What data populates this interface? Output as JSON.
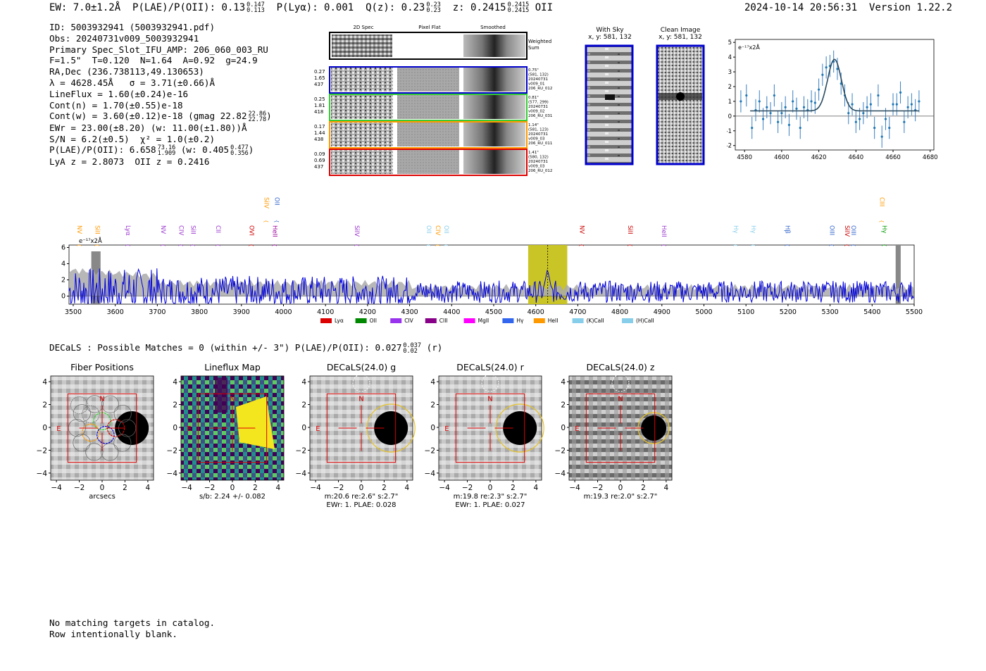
{
  "header": {
    "ew_label": "EW: 7.0±1.2Å",
    "ew_up": "",
    "ew_dn": "",
    "plae_label": "P(LAE)/P(OII): 0.13",
    "plae_up": "0.147",
    "plae_dn": "0.113",
    "plya": "P(Lyα): 0.001",
    "qz_label": "Q(z): 0.23",
    "qz_up": "0.23",
    "qz_dn": "0.23",
    "z_label": "z: 0.2415",
    "z_up": "0.2415",
    "z_dn": "0.2415",
    "z_line": "OII",
    "timestamp": "2024-10-14 20:56:31",
    "version": "Version 1.22.2"
  },
  "info": {
    "id": "ID: 5003932941 (5003932941.pdf)",
    "obs": "Obs: 20240731v009_5003932941",
    "primary": "Primary Spec_Slot_IFU_AMP: 206_060_003_RU",
    "params": "F=1.5\"  T=0.120  N=1.64  A=0.92  g=24.9",
    "radec": "RA,Dec (236.738113,49.130653)",
    "lambda": "λ = 4628.45Å   σ = 3.71(±0.66)Å",
    "lineflux": "LineFlux = 1.60(±0.24)e-16",
    "contn": "Cont(n) = 1.70(±0.55)e-18",
    "contw": "Cont(w) = 3.60(±0.12)e-18 (gmag 22.82",
    "contw_up": "22.86",
    "contw_dn": "22.78",
    "ewr": "EWr = 23.00(±8.20) (w: 11.00(±1.80))Å",
    "sn": "S/N = 6.2(±0.5)  χ² = 1.0(±0.2)",
    "plae": "P(LAE)/P(OII): 6.658",
    "plae_up": "73.16",
    "plae_dn": "1.909",
    "plae_w": "(w: 0.405",
    "plae_w_up": "0.477",
    "plae_w_dn": "0.356",
    "lya_z": "LyA z = 2.8073  OII z = 0.2416"
  },
  "cutouts": {
    "col_2d": "2D Spec",
    "col_flat": "Pixel Flat",
    "col_smooth": "Smoothed",
    "weighted": "Weighted\nSum",
    "rows": [
      {
        "color": "#0000cc",
        "left": "0.27\n1.65\n437",
        "right": "0.75\"\n(581, 132)\n20240731\nv009_01\n206_RU_012"
      },
      {
        "color": "#33cc33",
        "left": "0.25\n1.81\n418",
        "right": "0.81\"\n(577, 299)\n20240731\nv009_02\n206_RU_031"
      },
      {
        "color": "#ff9900",
        "left": "0.17\n1.44\n438",
        "right": "1.14\"\n(581, 123)\n20240731\nv009_03\n206_RU_011"
      },
      {
        "color": "#dd0000",
        "left": "0.09\n0.69\n437",
        "right": "1.41\"\n(580, 132)\n20240731\nv009_03\n206_RU_012"
      }
    ],
    "with_sky": "With Sky",
    "with_sky_xy": "x, y: 581, 132",
    "clean": "Clean Image",
    "clean_xy": "x, y: 581, 132"
  },
  "line_fit": {
    "unit": "e⁻¹⁷x2Å",
    "xticks": [
      "4580",
      "4600",
      "4620",
      "4640",
      "4660",
      "4680"
    ],
    "yticks": [
      "-2",
      "-1",
      "0",
      "1",
      "2",
      "3",
      "4",
      "5"
    ]
  },
  "chart_data": [
    {
      "type": "scatter",
      "title": "line fit",
      "xlim": [
        4575,
        4682
      ],
      "ylim": [
        -2.3,
        5.2
      ],
      "x": [
        4578,
        4581,
        4584,
        4586,
        4588,
        4590,
        4592,
        4594,
        4596,
        4598,
        4600,
        4602,
        4604,
        4606,
        4608,
        4610,
        4612,
        4614,
        4616,
        4618,
        4620,
        4622,
        4624,
        4626,
        4628,
        4630,
        4632,
        4634,
        4636,
        4638,
        4640,
        4642,
        4644,
        4646,
        4648,
        4650,
        4652,
        4654,
        4656,
        4658,
        4660,
        4662,
        4664,
        4666,
        4668,
        4670,
        4672,
        4674
      ],
      "y": [
        1.0,
        1.4,
        -0.8,
        0.4,
        1.0,
        -0.2,
        0.6,
        0.2,
        1.4,
        -0.4,
        0.2,
        0.6,
        -0.6,
        1.0,
        0.5,
        -0.8,
        0.6,
        0.4,
        1.0,
        0.9,
        1.8,
        2.8,
        3.3,
        3.4,
        3.7,
        3.2,
        2.2,
        1.4,
        0.2,
        0.8,
        -0.4,
        -0.2,
        0.2,
        0.6,
        0.8,
        -0.8,
        1.4,
        -1.4,
        -0.2,
        -0.8,
        0.8,
        0.8,
        1.6,
        -0.4,
        0.6,
        0.8,
        0.4,
        1.0
      ],
      "fit_continuum": 0.35,
      "fit_peak": 3.85,
      "fit_center": 4628.45
    },
    {
      "type": "line",
      "title": "full spectrum",
      "xlim": [
        3490,
        5500
      ],
      "ylim": [
        -1,
        6.3
      ],
      "xticks": [
        "3500",
        "3600",
        "3700",
        "3800",
        "3900",
        "4000",
        "4100",
        "4200",
        "4300",
        "4400",
        "4500",
        "4600",
        "4700",
        "4800",
        "4900",
        "5000",
        "5100",
        "5200",
        "5300",
        "5400",
        "5500"
      ],
      "yticks": [
        "0",
        "2",
        "4",
        "6"
      ],
      "unit": "e⁻¹⁷x2Å",
      "highlight": [
        4582,
        4675
      ],
      "emission_center": 4628.45,
      "lines": [
        {
          "name": "NV",
          "x": 3505,
          "color": "#ff9900",
          "row": 1
        },
        {
          "name": "SiII",
          "x": 3548,
          "color": "#ff9900",
          "row": 1
        },
        {
          "name": "Lyα",
          "x": 3621,
          "color": "#9933cc",
          "row": 1
        },
        {
          "name": "NV",
          "x": 3704,
          "color": "#9933cc",
          "row": 1
        },
        {
          "name": "CIV",
          "x": 3747,
          "color": "#9933cc",
          "row": 1
        },
        {
          "name": "SiII",
          "x": 3776,
          "color": "#9933cc",
          "row": 1
        },
        {
          "name": "CII",
          "x": 3835,
          "color": "#9933cc",
          "row": 1
        },
        {
          "name": "SiIV",
          "x": 3950,
          "color": "#ff9900",
          "row": 2
        },
        {
          "name": "OVI",
          "x": 3915,
          "color": "#cc0000",
          "row": 1
        },
        {
          "name": "OII",
          "x": 3975,
          "color": "#3366cc",
          "row": 2
        },
        {
          "name": "HeII",
          "x": 3970,
          "color": "#990099",
          "row": 1
        },
        {
          "name": "SiIV",
          "x": 4165,
          "color": "#9933cc",
          "row": 1
        },
        {
          "name": "OII",
          "x": 4336,
          "color": "#87ceeb",
          "row": 1
        },
        {
          "name": "CIV",
          "x": 4358,
          "color": "#ff9900",
          "row": 1
        },
        {
          "name": "OII",
          "x": 4378,
          "color": "#87ceeb",
          "row": 1
        },
        {
          "name": "NV",
          "x": 4700,
          "color": "#cc0000",
          "row": 1
        },
        {
          "name": "SiII",
          "x": 4815,
          "color": "#cc0000",
          "row": 1
        },
        {
          "name": "HeII",
          "x": 4895,
          "color": "#9933cc",
          "row": 1
        },
        {
          "name": "Hγ",
          "x": 5066,
          "color": "#87ceeb",
          "row": 1
        },
        {
          "name": "Hγ",
          "x": 5108,
          "color": "#87ceeb",
          "row": 1
        },
        {
          "name": "Hβ",
          "x": 5189,
          "color": "#3366cc",
          "row": 1
        },
        {
          "name": "OIII",
          "x": 5295,
          "color": "#3366cc",
          "row": 1
        },
        {
          "name": "SiIV",
          "x": 5331,
          "color": "#cc0000",
          "row": 1
        },
        {
          "name": "OIII",
          "x": 5346,
          "color": "#3366cc",
          "row": 1
        },
        {
          "name": "CIII",
          "x": 5414,
          "color": "#ff9900",
          "row": 2
        },
        {
          "name": "Hγ",
          "x": 5420,
          "color": "#009900",
          "row": 1
        }
      ],
      "legend": [
        {
          "name": "Lyα",
          "color": "#dd0000"
        },
        {
          "name": "OII",
          "color": "#008800"
        },
        {
          "name": "CIV",
          "color": "#9933ee"
        },
        {
          "name": "CIII",
          "color": "#880088"
        },
        {
          "name": "MgII",
          "color": "#ff00ff"
        },
        {
          "name": "Hγ",
          "color": "#3366ee"
        },
        {
          "name": "HeII",
          "color": "#ff9900"
        },
        {
          "name": "(K)CaII",
          "color": "#87ceeb"
        },
        {
          "name": "(H)CaII",
          "color": "#87ceeb"
        }
      ]
    }
  ],
  "decals": {
    "title": "DECaLS : Possible Matches = 0 (within +/- 3\")  P(LAE)/P(OII): 0.027",
    "up": "0.037",
    "dn": "0.02",
    "band": "(r)",
    "xticks": [
      "−4",
      "−2",
      "0",
      "2",
      "4"
    ],
    "yticks": [
      "4",
      "2",
      "0",
      "−2",
      "−4"
    ],
    "north": "N",
    "east": "E",
    "panels": [
      {
        "title": "Fiber Positions",
        "caption1": "arcsecs",
        "caption2": ""
      },
      {
        "title": "Lineflux Map",
        "caption1": "s/b: 2.24 +/- 0.082",
        "caption2": ""
      },
      {
        "title": "DECaLS(24.0) g",
        "caption1": "m:20.6  re:2.6\"  s:2.7\"",
        "caption2": "EWr: 1. PLAE: 0.028"
      },
      {
        "title": "DECaLS(24.0) r",
        "caption1": "m:19.8  re:2.3\"  s:2.7\"",
        "caption2": "EWr: 1. PLAE: 0.027"
      },
      {
        "title": "DECaLS(24.0) z",
        "caption1": "m:19.3  re:2.0\"  s:2.7\"",
        "caption2": ""
      }
    ]
  },
  "footer": {
    "line1": "No matching targets in catalog.",
    "line2": "Row intentionally blank."
  }
}
